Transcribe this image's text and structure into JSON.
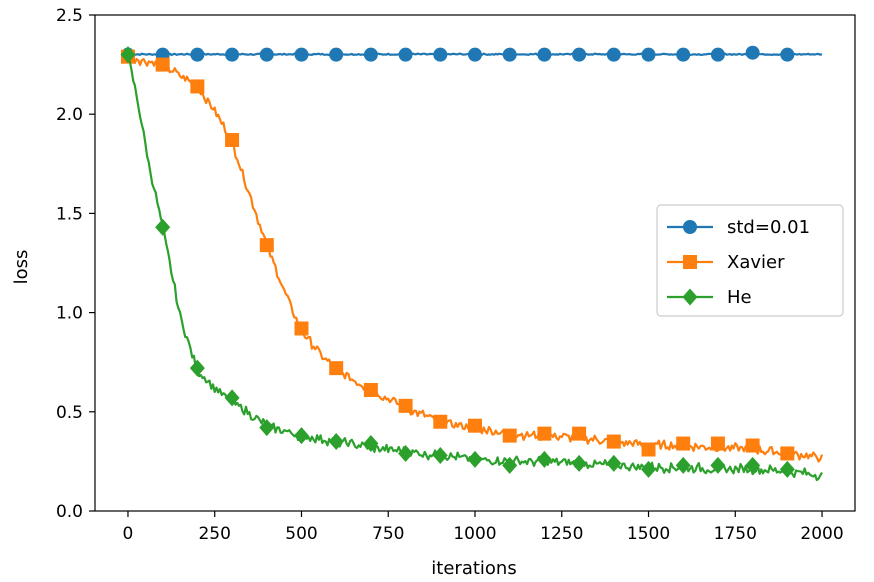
{
  "chart_data": {
    "type": "line",
    "title": "",
    "xlabel": "iterations",
    "ylabel": "loss",
    "xlim": [
      -95,
      2095
    ],
    "ylim": [
      0.0,
      2.5
    ],
    "xticks": [
      0,
      250,
      500,
      750,
      1000,
      1250,
      1500,
      1750,
      2000
    ],
    "xtick_labels": [
      "0",
      "250",
      "500",
      "750",
      "1000",
      "1250",
      "1500",
      "1750",
      "2000"
    ],
    "yticks": [
      0.0,
      0.5,
      1.0,
      1.5,
      2.0,
      2.5
    ],
    "ytick_labels": [
      "0.0",
      "0.5",
      "1.0",
      "1.5",
      "2.0",
      "2.5"
    ],
    "grid": false,
    "legend_position": "center-right",
    "marker_x": [
      0,
      100,
      200,
      300,
      400,
      500,
      600,
      700,
      800,
      900,
      1000,
      1100,
      1200,
      1300,
      1400,
      1500,
      1600,
      1700,
      1800,
      1900
    ],
    "series": [
      {
        "name": "std=0.01",
        "color": "#1f77b4",
        "marker": "circle",
        "anchors_x": [
          0,
          500,
          1000,
          1500,
          2000
        ],
        "anchors_y": [
          2.302,
          2.302,
          2.302,
          2.302,
          2.302
        ],
        "noise": 0.003,
        "marker_values": [
          2.3,
          2.3,
          2.3,
          2.3,
          2.3,
          2.3,
          2.3,
          2.3,
          2.3,
          2.3,
          2.3,
          2.3,
          2.3,
          2.3,
          2.3,
          2.3,
          2.3,
          2.3,
          2.31,
          2.3
        ]
      },
      {
        "name": "Xavier",
        "color": "#ff7f0e",
        "marker": "square",
        "anchors_x": [
          0,
          100,
          200,
          250,
          300,
          350,
          400,
          450,
          500,
          550,
          600,
          700,
          800,
          900,
          1000,
          1100,
          1200,
          1300,
          1400,
          1500,
          1600,
          1700,
          1800,
          1900,
          2000
        ],
        "anchors_y": [
          2.29,
          2.25,
          2.14,
          2.02,
          1.86,
          1.6,
          1.34,
          1.11,
          0.91,
          0.8,
          0.71,
          0.61,
          0.52,
          0.45,
          0.42,
          0.39,
          0.38,
          0.37,
          0.35,
          0.33,
          0.33,
          0.32,
          0.31,
          0.29,
          0.27
        ],
        "noise": 0.02,
        "marker_values": [
          2.29,
          2.25,
          2.14,
          1.87,
          1.34,
          0.92,
          0.72,
          0.61,
          0.53,
          0.45,
          0.43,
          0.38,
          0.39,
          0.39,
          0.35,
          0.31,
          0.34,
          0.34,
          0.33,
          0.29
        ]
      },
      {
        "name": "He",
        "color": "#2ca02c",
        "marker": "diamond",
        "anchors_x": [
          0,
          30,
          60,
          100,
          150,
          200,
          250,
          300,
          400,
          500,
          600,
          700,
          800,
          900,
          1000,
          1100,
          1200,
          1300,
          1400,
          1500,
          1600,
          1700,
          1800,
          1900,
          2000
        ],
        "anchors_y": [
          2.3,
          2.05,
          1.75,
          1.43,
          0.98,
          0.71,
          0.62,
          0.55,
          0.43,
          0.38,
          0.35,
          0.32,
          0.3,
          0.28,
          0.26,
          0.25,
          0.25,
          0.24,
          0.23,
          0.22,
          0.22,
          0.21,
          0.21,
          0.2,
          0.18
        ],
        "noise": 0.02,
        "marker_values": [
          2.3,
          1.43,
          0.72,
          0.57,
          0.42,
          0.38,
          0.35,
          0.34,
          0.29,
          0.28,
          0.26,
          0.23,
          0.26,
          0.24,
          0.24,
          0.21,
          0.23,
          0.23,
          0.23,
          0.21
        ]
      }
    ]
  }
}
